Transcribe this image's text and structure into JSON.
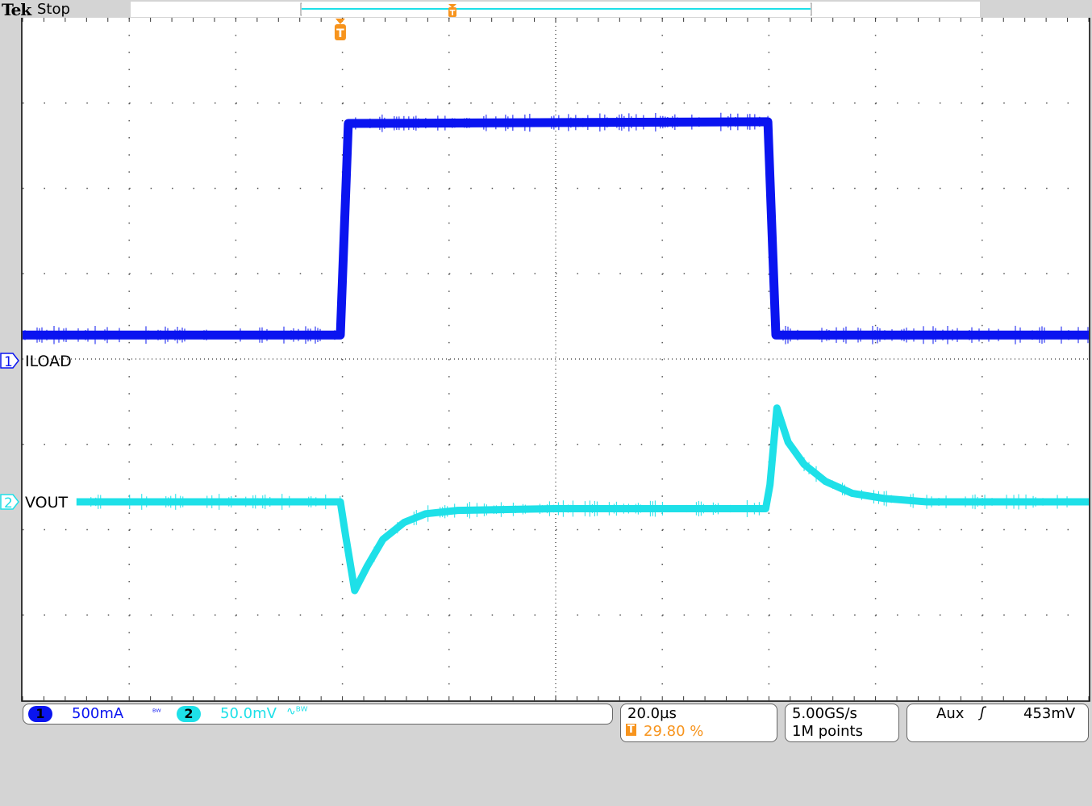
{
  "header": {
    "brand": "Tek",
    "state": "Stop"
  },
  "colors": {
    "ch1": "#0a14f0",
    "ch2": "#1ee0e8",
    "trigger": "#f7941d",
    "grid": "#555555"
  },
  "channels": [
    {
      "number": "1",
      "label": "ILOAD",
      "scale": "500mA",
      "bw_icon": "Bw"
    },
    {
      "number": "2",
      "label": "VOUT",
      "scale": "50.0mV",
      "coupling_icon": "ac-coupling-icon",
      "bw_icon": "Bw"
    }
  ],
  "horizontal": {
    "scale": "20.0µs",
    "trigger_position": "29.80 %"
  },
  "acquisition": {
    "sample_rate": "5.00GS/s",
    "record_length": "1M points"
  },
  "trigger": {
    "source": "Aux",
    "slope_icon": "rising-edge-icon",
    "level": "453mV"
  },
  "chart_data": {
    "type": "line",
    "x_unit": "µs relative to trigger",
    "xlim": [
      -59.6,
      140.4
    ],
    "x_divisions": 10,
    "y_divisions": 8,
    "grid": true,
    "series": [
      {
        "name": "ILOAD",
        "unit": "A",
        "scale_per_div": 0.5,
        "x": [
          -59.6,
          0,
          1.5,
          80.2,
          81.7,
          140.4
        ],
        "y": [
          0.15,
          0.15,
          1.39,
          1.4,
          0.15,
          0.15
        ]
      },
      {
        "name": "VOUT",
        "unit": "mV",
        "scale_per_div": 50,
        "x": [
          -49.5,
          0,
          1.0,
          2.7,
          5,
          8,
          12,
          16,
          22,
          40,
          79.8,
          80.6,
          81.9,
          84,
          87,
          91,
          96,
          102,
          110,
          140.4
        ],
        "y": [
          0,
          0,
          -20,
          -52,
          -38,
          -22,
          -12,
          -7,
          -5,
          -4,
          -4,
          10,
          55,
          35,
          22,
          12,
          5,
          2,
          0,
          0
        ]
      }
    ]
  }
}
